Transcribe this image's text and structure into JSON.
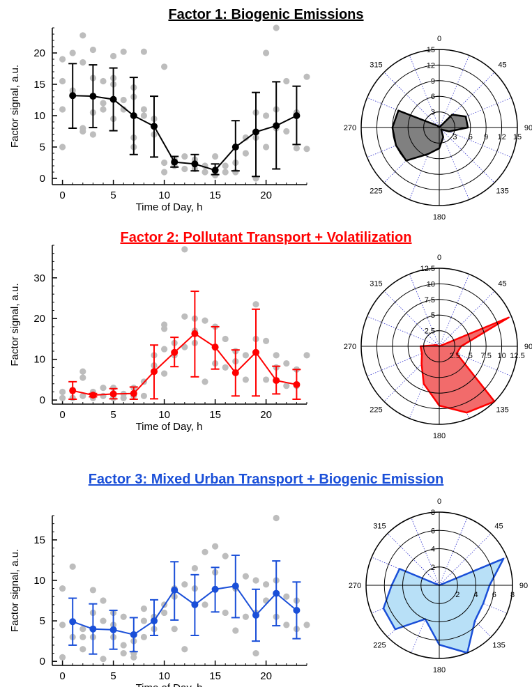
{
  "chart_data": [
    {
      "type": "line",
      "title": "Factor 1: Biogenic Emissions",
      "title_color": "#000000",
      "xlabel": "Time of Day, h",
      "ylabel": "Factor signal, a.u.",
      "xlim": [
        -1,
        24
      ],
      "ylim": [
        -1,
        24
      ],
      "xticks": [
        0,
        5,
        10,
        15,
        20
      ],
      "xtick_labels": [
        "0",
        "5",
        "10",
        "15",
        "20"
      ],
      "yticks": [
        0,
        5,
        10,
        15,
        20
      ],
      "ytick_labels": [
        "0",
        "5",
        "10",
        "15",
        "20"
      ],
      "series_color": "#000000",
      "series": [
        {
          "x": [
            1,
            3,
            5,
            7,
            9,
            11,
            13,
            15,
            17,
            19,
            21,
            23
          ],
          "values": [
            13.2,
            13.1,
            12.6,
            10.0,
            8.3,
            2.6,
            2.3,
            1.3,
            5.0,
            7.4,
            8.4,
            10.0
          ],
          "error_low": [
            8.0,
            8.1,
            7.6,
            3.8,
            3.4,
            1.8,
            1.2,
            0.6,
            1.2,
            0.3,
            1.5,
            5.4
          ],
          "error_high": [
            18.3,
            18.1,
            17.6,
            16.1,
            13.1,
            3.5,
            3.8,
            2.3,
            9.2,
            13.7,
            15.4,
            14.7
          ]
        }
      ],
      "scatter": {
        "color": "#bdbdbd",
        "x": [
          0,
          0,
          0,
          0,
          1,
          1,
          2,
          2,
          2,
          2,
          3,
          3,
          3,
          3,
          4,
          4,
          4,
          5,
          5,
          5,
          5,
          6,
          6,
          6,
          7,
          7,
          7,
          7,
          8,
          8,
          8,
          9,
          9,
          10,
          10,
          10,
          11,
          11,
          12,
          12,
          13,
          13,
          14,
          14,
          15,
          15,
          16,
          16,
          17,
          17,
          18,
          18,
          19,
          19,
          19,
          20,
          20,
          20,
          21,
          21,
          21,
          22,
          22,
          23,
          23,
          24,
          24
        ],
        "y": [
          5.0,
          11.0,
          15.5,
          19.0,
          20.0,
          14.0,
          22.8,
          18.5,
          8.0,
          7.5,
          20.5,
          16.0,
          10.5,
          7.0,
          15.5,
          12.0,
          11.0,
          19.5,
          16.0,
          15.0,
          9.5,
          20.2,
          12.5,
          11.0,
          14.5,
          13.0,
          6.5,
          5.0,
          20.2,
          11.0,
          10.0,
          9.5,
          7.0,
          17.8,
          2.5,
          1.0,
          2.0,
          3.0,
          3.5,
          1.5,
          3.0,
          1.5,
          2.0,
          1.0,
          3.5,
          0.5,
          2.0,
          1.0,
          2.5,
          1.0,
          6.5,
          4.0,
          10.5,
          6.5,
          0.0,
          20.0,
          10.0,
          5.0,
          24.0,
          11.0,
          8.0,
          15.5,
          7.5,
          10.5,
          4.8,
          16.2,
          4.7
        ]
      },
      "polar": {
        "rmax": 15,
        "rticks": [
          3,
          6,
          9,
          12,
          15
        ],
        "rtick_labels": [
          "3",
          "6",
          "9",
          "12",
          "15"
        ],
        "angle_labels": [
          "0",
          "45",
          "90",
          "135",
          "180",
          "225",
          "270",
          "315"
        ],
        "fill_color": "#808080",
        "edge_color": "#000000",
        "directions": [
          0,
          22.5,
          45,
          67.5,
          90,
          112.5,
          135,
          157.5,
          180,
          202.5,
          225,
          247.5,
          270,
          292.5,
          315,
          337.5
        ],
        "values": [
          0,
          0,
          3.5,
          5.5,
          5.5,
          2.0,
          0.5,
          2.0,
          4.0,
          5.5,
          9.0,
          9.0,
          9.0,
          8.5,
          0.5,
          0
        ]
      }
    },
    {
      "type": "line",
      "title": "Factor 2: Pollutant Transport + Volatilization",
      "title_color": "#ff0000",
      "xlabel": "Time of Day, h",
      "ylabel": "Factor signal, a.u.",
      "xlim": [
        -1,
        24
      ],
      "ylim": [
        -1,
        38
      ],
      "xticks": [
        0,
        5,
        10,
        15,
        20
      ],
      "xtick_labels": [
        "0",
        "5",
        "10",
        "15",
        "20"
      ],
      "yticks": [
        0,
        10,
        20,
        30
      ],
      "ytick_labels": [
        "0",
        "10",
        "20",
        "30"
      ],
      "series_color": "#ff0000",
      "series": [
        {
          "x": [
            1,
            3,
            5,
            7,
            9,
            11,
            13,
            15,
            17,
            19,
            21,
            23
          ],
          "values": [
            2.3,
            1.2,
            1.5,
            1.6,
            7.0,
            11.7,
            16.3,
            13.0,
            6.7,
            11.7,
            4.8,
            3.8
          ],
          "error_low": [
            0.2,
            0.8,
            0.3,
            0.2,
            0.3,
            8.2,
            5.7,
            7.6,
            1.0,
            1.0,
            1.5,
            0.2
          ],
          "error_high": [
            4.5,
            1.6,
            2.8,
            3.2,
            13.5,
            15.4,
            26.7,
            18.0,
            12.3,
            22.3,
            8.3,
            7.5
          ]
        }
      ],
      "scatter": {
        "color": "#bdbdbd",
        "x": [
          0,
          0,
          1,
          1,
          2,
          2,
          2,
          3,
          3,
          4,
          4,
          5,
          5,
          6,
          6,
          7,
          7,
          8,
          8,
          9,
          9,
          10,
          10,
          10,
          10,
          11,
          11,
          12,
          12,
          12,
          13,
          13,
          13,
          14,
          14,
          15,
          15,
          16,
          16,
          17,
          17,
          18,
          18,
          19,
          19,
          20,
          20,
          21,
          21,
          22,
          22,
          23,
          23,
          24
        ],
        "y": [
          2.0,
          0.5,
          2.5,
          0.5,
          7.0,
          5.5,
          1.0,
          2.0,
          0.5,
          3.0,
          1.0,
          3.0,
          0.5,
          1.5,
          0.5,
          3.0,
          1.0,
          4.5,
          1.0,
          11.0,
          8.5,
          18.5,
          17.5,
          12.5,
          6.5,
          14.0,
          11.0,
          37.0,
          20.5,
          13.0,
          20.0,
          17.0,
          14.0,
          19.5,
          4.5,
          18.0,
          9.0,
          15.0,
          8.0,
          12.0,
          9.5,
          11.0,
          5.0,
          23.5,
          15.0,
          14.5,
          5.0,
          11.0,
          8.0,
          9.0,
          3.5,
          7.5,
          3.5,
          11.0
        ]
      },
      "polar": {
        "rmax": 12.5,
        "rticks": [
          2.5,
          5,
          7.5,
          10,
          12.5
        ],
        "rtick_labels": [
          "2.5",
          "5",
          "7.5",
          "10",
          "12.5"
        ],
        "angle_labels": [
          "0",
          "45",
          "90",
          "135",
          "180",
          "225",
          "270",
          "315"
        ],
        "fill_color": "#f26b6b",
        "edge_color": "#ff0000",
        "directions": [
          0,
          22.5,
          45,
          67.5,
          90,
          112.5,
          135,
          157.5,
          180,
          202.5,
          225,
          247.5,
          270,
          292.5,
          315,
          337.5
        ],
        "values": [
          0,
          0,
          0,
          12.0,
          3.5,
          3.0,
          12.5,
          11.5,
          9.5,
          6.5,
          4.0,
          3.0,
          3.0,
          0.5,
          0,
          0
        ]
      }
    },
    {
      "type": "line",
      "title": "Factor 3: Mixed Urban Transport + Biogenic Emission",
      "title_color": "#1a4fd8",
      "xlabel": "Time of Day, h",
      "ylabel": "Factor signal, a.u.",
      "xlim": [
        -1,
        24
      ],
      "ylim": [
        -0.5,
        18
      ],
      "xticks": [
        0,
        5,
        10,
        15,
        20
      ],
      "xtick_labels": [
        "0",
        "5",
        "10",
        "15",
        "20"
      ],
      "yticks": [
        0,
        5,
        10,
        15
      ],
      "ytick_labels": [
        "0",
        "5",
        "10",
        "15"
      ],
      "series_color": "#1a4fd8",
      "series": [
        {
          "x": [
            1,
            3,
            5,
            7,
            9,
            11,
            13,
            15,
            17,
            19,
            21,
            23
          ],
          "values": [
            4.9,
            4.0,
            3.9,
            3.3,
            5.0,
            8.8,
            7.0,
            8.9,
            9.3,
            5.7,
            8.4,
            6.3
          ],
          "error_low": [
            2.0,
            0.9,
            1.5,
            1.2,
            3.2,
            5.1,
            3.2,
            6.1,
            5.4,
            2.5,
            4.4,
            2.8
          ],
          "error_high": [
            7.8,
            7.1,
            6.3,
            5.4,
            7.6,
            12.3,
            10.7,
            11.6,
            13.1,
            8.9,
            12.4,
            9.8
          ]
        }
      ],
      "scatter": {
        "color": "#bdbdbd",
        "x": [
          0,
          0,
          0,
          1,
          1,
          2,
          2,
          2,
          3,
          3,
          3,
          4,
          4,
          4,
          5,
          5,
          5,
          6,
          6,
          6,
          7,
          7,
          7,
          8,
          8,
          8,
          9,
          9,
          10,
          10,
          11,
          11,
          11,
          12,
          12,
          13,
          13,
          14,
          14,
          15,
          15,
          16,
          16,
          17,
          17,
          18,
          18,
          19,
          19,
          19,
          20,
          20,
          21,
          21,
          21,
          22,
          22,
          23,
          23,
          24
        ],
        "y": [
          9.0,
          4.5,
          0.5,
          11.7,
          3.0,
          4.0,
          3.0,
          1.5,
          8.8,
          6.0,
          3.0,
          7.5,
          5.0,
          0.3,
          6.0,
          4.5,
          3.0,
          5.5,
          2.0,
          1.0,
          2.5,
          1.0,
          0.5,
          6.5,
          5.0,
          3.0,
          5.5,
          4.0,
          7.0,
          6.0,
          9.0,
          8.0,
          4.0,
          9.5,
          1.5,
          11.5,
          9.0,
          13.5,
          7.0,
          14.2,
          11.0,
          13.0,
          6.0,
          9.0,
          3.8,
          10.5,
          5.5,
          10.0,
          6.0,
          1.0,
          9.5,
          7.5,
          17.7,
          10.0,
          5.5,
          8.0,
          4.5,
          7.5,
          4.0,
          4.5
        ]
      },
      "polar": {
        "rmax": 8,
        "rticks": [
          2,
          4,
          6,
          8
        ],
        "rtick_labels": [
          "2",
          "4",
          "6",
          "8"
        ],
        "angle_labels": [
          "0",
          "45",
          "90",
          "135",
          "180",
          "225",
          "270",
          "315"
        ],
        "fill_color": "#b8e0f7",
        "edge_color": "#1a4fd8",
        "directions": [
          0,
          22.5,
          45,
          67.5,
          90,
          112.5,
          135,
          157.5,
          180,
          202.5,
          225,
          247.5,
          270,
          292.5,
          315,
          337.5
        ],
        "values": [
          0,
          0,
          0,
          7.6,
          5.5,
          5.2,
          5.5,
          8.0,
          6.5,
          4.0,
          6.8,
          6.6,
          5.2,
          4.7,
          0,
          0
        ]
      }
    }
  ]
}
